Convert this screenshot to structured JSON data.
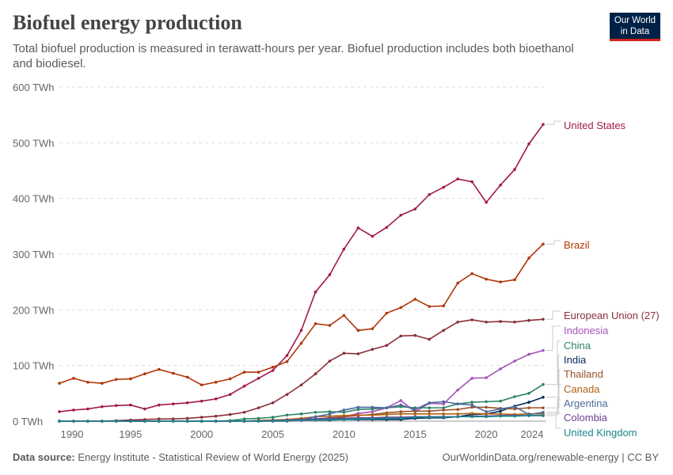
{
  "title": "Biofuel energy production",
  "subtitle": "Total biofuel production is measured in terawatt-hours per year. Biofuel production includes both bioethanol and biodiesel.",
  "logo": "Our World in Data",
  "footer": {
    "source_label": "Data source:",
    "source": "Energy Institute - Statistical Review of World Energy (2025)",
    "url": "OurWorldinData.org/renewable-energy | CC BY"
  },
  "chart_data": {
    "type": "line",
    "ylim": [
      0,
      600
    ],
    "unit": "TWh",
    "grid": true,
    "legend": "right-labels",
    "yticks": [
      "0 TWh",
      "100 TWh",
      "200 TWh",
      "300 TWh",
      "400 TWh",
      "500 TWh",
      "600 TWh"
    ],
    "ytick_values": [
      0,
      100,
      200,
      300,
      400,
      500,
      600
    ],
    "xticks": [
      "1990",
      "1995",
      "2000",
      "2005",
      "2010",
      "2015",
      "2020",
      "2024"
    ],
    "xtick_values": [
      1990,
      1995,
      2000,
      2005,
      2010,
      2015,
      2020,
      2024
    ],
    "x_start": 1990,
    "x_end": 2024,
    "series": [
      {
        "name": "United States",
        "color": "#a2184e",
        "values": [
          17,
          20,
          22,
          26,
          28,
          29,
          22,
          29,
          31,
          33,
          36,
          40,
          48,
          63,
          77,
          91,
          118,
          163,
          232,
          263,
          309,
          347,
          332,
          348,
          370,
          381,
          407,
          420,
          435,
          430,
          393,
          424,
          452,
          498,
          533
        ]
      },
      {
        "name": "Brazil",
        "color": "#b13507",
        "values": [
          68,
          77,
          70,
          68,
          75,
          76,
          85,
          93,
          86,
          79,
          65,
          70,
          76,
          88,
          88,
          97,
          107,
          140,
          175,
          172,
          190,
          163,
          166,
          194,
          204,
          219,
          206,
          207,
          248,
          265,
          255,
          250,
          254,
          293,
          318
        ]
      },
      {
        "name": "European Union (27)",
        "color": "#883039",
        "values": [
          0,
          0,
          0,
          0,
          1,
          2,
          3,
          4,
          4,
          5,
          7,
          9,
          12,
          16,
          24,
          33,
          48,
          65,
          85,
          108,
          122,
          121,
          129,
          136,
          153,
          154,
          147,
          163,
          178,
          182,
          178,
          179,
          178,
          181,
          183
        ]
      },
      {
        "name": "Indonesia",
        "color": "#a652ba",
        "values": [
          0,
          0,
          0,
          0,
          0,
          0,
          0,
          0,
          0,
          0,
          0,
          0,
          0,
          0,
          0,
          0,
          0,
          1,
          2,
          3,
          8,
          14,
          17,
          24,
          37,
          17,
          32,
          31,
          56,
          77,
          78,
          94,
          108,
          120,
          127
        ]
      },
      {
        "name": "China",
        "color": "#2c8465",
        "values": [
          0,
          0,
          0,
          0,
          0,
          0,
          0,
          0,
          0,
          0,
          0,
          0,
          1,
          4,
          5,
          7,
          11,
          13,
          16,
          17,
          16,
          21,
          22,
          24,
          26,
          24,
          24,
          24,
          31,
          34,
          35,
          36,
          44,
          50,
          66
        ]
      },
      {
        "name": "India",
        "color": "#00295b",
        "values": [
          0,
          0,
          0,
          0,
          0,
          0,
          0,
          0,
          0,
          0,
          0,
          0,
          0,
          0,
          1,
          2,
          2,
          2,
          2,
          2,
          3,
          3,
          3,
          3,
          3,
          5,
          6,
          6,
          8,
          12,
          13,
          18,
          27,
          34,
          43
        ]
      },
      {
        "name": "Thailand",
        "color": "#9a5129",
        "values": [
          0,
          0,
          0,
          0,
          0,
          0,
          0,
          0,
          0,
          0,
          0,
          0,
          0,
          0,
          0,
          1,
          1,
          2,
          4,
          6,
          8,
          10,
          12,
          15,
          17,
          18,
          18,
          20,
          21,
          25,
          25,
          23,
          22,
          24,
          24
        ]
      },
      {
        "name": "Canada",
        "color": "#b16214",
        "values": [
          0,
          0,
          0,
          0,
          0,
          0,
          0,
          0,
          0,
          0,
          0,
          0,
          0,
          0,
          1,
          2,
          3,
          5,
          8,
          9,
          10,
          11,
          11,
          12,
          13,
          13,
          13,
          13,
          13,
          14,
          13,
          13,
          12,
          13,
          13
        ]
      },
      {
        "name": "Argentina",
        "color": "#4c6a9c",
        "values": [
          0,
          0,
          0,
          0,
          0,
          0,
          0,
          0,
          0,
          0,
          0,
          0,
          0,
          0,
          0,
          0,
          0,
          2,
          8,
          13,
          20,
          25,
          25,
          24,
          29,
          21,
          33,
          35,
          31,
          29,
          17,
          22,
          26,
          12,
          16
        ]
      },
      {
        "name": "Colombia",
        "color": "#6d3e91",
        "values": [
          0,
          0,
          0,
          0,
          0,
          0,
          0,
          0,
          0,
          0,
          0,
          0,
          0,
          0,
          0,
          1,
          2,
          3,
          4,
          5,
          5,
          6,
          6,
          7,
          7,
          8,
          8,
          8,
          8,
          9,
          9,
          10,
          10,
          10,
          10
        ]
      },
      {
        "name": "United Kingdom",
        "color": "#18868c",
        "values": [
          0,
          0,
          0,
          0,
          0,
          0,
          0,
          0,
          0,
          0,
          0,
          0,
          0,
          0,
          0,
          1,
          1,
          2,
          2,
          3,
          3,
          4,
          4,
          5,
          5,
          7,
          7,
          7,
          8,
          8,
          8,
          9,
          9,
          10,
          10
        ]
      }
    ]
  }
}
